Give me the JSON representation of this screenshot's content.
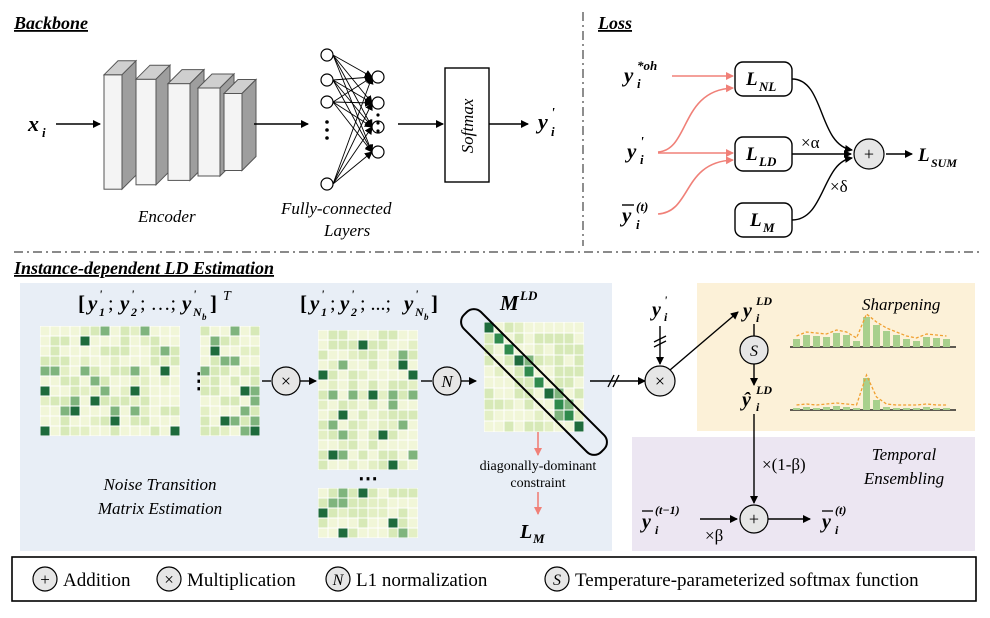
{
  "sections": {
    "backbone": "Backbone",
    "loss": "Loss",
    "ld": "Instance-dependent LD Estimation"
  },
  "backbone": {
    "input": "x",
    "input_sub": "i",
    "encoder": "Encoder",
    "fc_line1": "Fully-connected",
    "fc_line2": "Layers",
    "softmax": "Softmax",
    "output": "y",
    "output_sub": "i",
    "output_prime": "'"
  },
  "loss": {
    "y_oh": "y",
    "y_oh_sup": "*oh",
    "y_oh_sub": "i",
    "y_prime": "y",
    "y_prime_sub": "i",
    "y_bar": "y",
    "y_bar_sup": "(t)",
    "y_bar_sub": "i",
    "l_nl": "L",
    "l_nl_sub": "NL",
    "l_ld": "L",
    "l_ld_sub": "LD",
    "l_m": "L",
    "l_m_sub": "M",
    "alpha": "×α",
    "delta": "×δ",
    "sum": "L",
    "sum_sub": "SUM"
  },
  "ld": {
    "mat1_label": "[y'1; y'2; …; y'Nb] T",
    "mat2_label": "[y'1; y'2; …; y'Nb]",
    "mld": "M",
    "mld_sup": "LD",
    "noise_line1": "Noise Transition",
    "noise_line2": "Matrix Estimation",
    "diag_line1": "diagonally-dominant",
    "diag_line2": "constraint",
    "lm": "L",
    "lm_sub": "M",
    "dots_h": "⋮",
    "dots_v": "⋯",
    "norm_symbol": "N",
    "yi_prime": "y",
    "sharpening": "Sharpening",
    "yld": "y",
    "yld_sup": "LD",
    "yhat_ld": "ŷ",
    "s_symbol": "S",
    "temporal_line1": "Temporal",
    "temporal_line2": "Ensembling",
    "one_minus_beta": "×(1-β)",
    "beta": "×β",
    "y_prev": "y",
    "y_prev_sup": "(t−1)",
    "y_t": "y",
    "y_t_sup": "(t)"
  },
  "legend": [
    {
      "symbol": "+",
      "label": "Addition"
    },
    {
      "symbol": "×",
      "label": "Multiplication"
    },
    {
      "symbol": "N",
      "label": "L1 normalization"
    },
    {
      "symbol": "S",
      "label": "Temperature-parameterized softmax function"
    }
  ],
  "colors": {
    "red_arrow": "#f08078",
    "ld_panel": "#e8eef6",
    "sharp_panel": "#fcf1d8",
    "temporal_panel": "#ece6f2",
    "green_dark": "#1e6b3c",
    "green_mid": "#7fb47d",
    "green_light": "#d7e9b7",
    "green_pale": "#f1f6d8"
  }
}
